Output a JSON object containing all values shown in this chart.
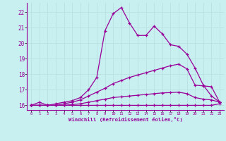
{
  "title": "",
  "xlabel": "Windchill (Refroidissement éolien,°C)",
  "bg_color": "#c8f0f0",
  "grid_color": "#b8dede",
  "line_color": "#990099",
  "x": [
    0,
    1,
    2,
    3,
    4,
    5,
    6,
    7,
    8,
    9,
    10,
    11,
    12,
    13,
    14,
    15,
    16,
    17,
    18,
    19,
    20,
    21,
    22,
    23
  ],
  "line1": [
    16.0,
    16.2,
    16.0,
    16.1,
    16.2,
    16.3,
    16.5,
    17.0,
    17.8,
    20.8,
    21.9,
    22.3,
    21.3,
    20.5,
    20.5,
    21.1,
    20.6,
    19.9,
    19.8,
    19.3,
    18.4,
    17.3,
    16.6,
    16.2
  ],
  "line2": [
    16.0,
    16.0,
    16.0,
    16.0,
    16.1,
    16.2,
    16.35,
    16.6,
    16.85,
    17.1,
    17.4,
    17.6,
    17.8,
    17.95,
    18.1,
    18.25,
    18.4,
    18.55,
    18.65,
    18.35,
    17.3,
    17.25,
    17.2,
    16.2
  ],
  "line3": [
    16.0,
    16.0,
    16.0,
    16.0,
    16.0,
    16.05,
    16.1,
    16.2,
    16.3,
    16.4,
    16.5,
    16.55,
    16.6,
    16.65,
    16.7,
    16.75,
    16.8,
    16.82,
    16.85,
    16.75,
    16.5,
    16.4,
    16.35,
    16.2
  ],
  "line4": [
    16.0,
    16.0,
    16.0,
    16.0,
    16.0,
    16.0,
    16.0,
    16.0,
    16.0,
    16.0,
    16.0,
    16.0,
    16.0,
    16.0,
    16.0,
    16.0,
    16.0,
    16.0,
    16.0,
    16.0,
    16.0,
    16.0,
    16.0,
    16.1
  ],
  "ylim": [
    15.7,
    22.6
  ],
  "xlim": [
    -0.5,
    23.5
  ],
  "yticks": [
    16,
    17,
    18,
    19,
    20,
    21,
    22
  ],
  "xticks": [
    0,
    1,
    2,
    3,
    4,
    5,
    6,
    7,
    8,
    9,
    10,
    11,
    12,
    13,
    14,
    15,
    16,
    17,
    18,
    19,
    20,
    21,
    22,
    23
  ]
}
